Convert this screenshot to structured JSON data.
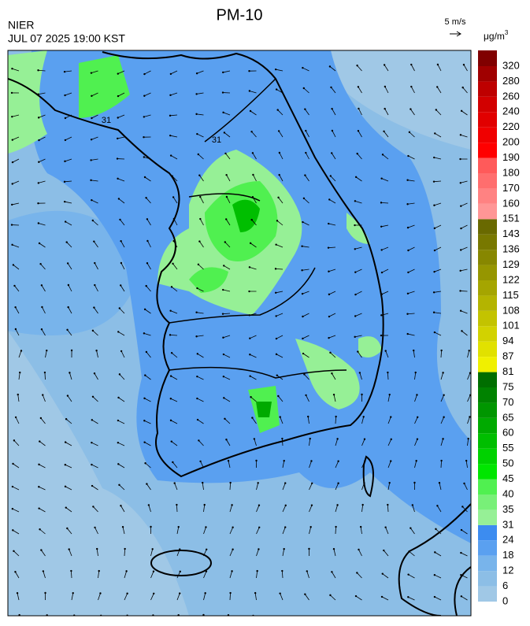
{
  "header": {
    "agency": "NIER",
    "title": "PM-10",
    "datetime": "JUL 07 2025 19:00 KST"
  },
  "wind_scale": {
    "label": "5 m/s"
  },
  "legend": {
    "unit": "μg/m",
    "unit_sup": "3",
    "labels": [
      "0",
      "6",
      "12",
      "18",
      "24",
      "31",
      "35",
      "40",
      "45",
      "50",
      "55",
      "60",
      "65",
      "70",
      "75",
      "81",
      "87",
      "94",
      "101",
      "108",
      "115",
      "122",
      "129",
      "136",
      "143",
      "151",
      "160",
      "170",
      "180",
      "190",
      "200",
      "220",
      "240",
      "260",
      "280",
      "320"
    ],
    "colors": [
      "#a0c8e6",
      "#8cbee6",
      "#78b4eb",
      "#5aa0f0",
      "#3c8cf0",
      "#96f096",
      "#78f078",
      "#50f050",
      "#00e600",
      "#00d200",
      "#00be00",
      "#00aa00",
      "#009600",
      "#008200",
      "#006e00",
      "#f0f000",
      "#e1e100",
      "#d2d200",
      "#c3c300",
      "#b4b400",
      "#a5a500",
      "#969600",
      "#878700",
      "#787800",
      "#696900",
      "#ff9696",
      "#ff8282",
      "#ff6e6e",
      "#ff5a5a",
      "#ff0000",
      "#f00000",
      "#e10000",
      "#d20000",
      "#be0000",
      "#a00000",
      "#800000"
    ]
  },
  "contour_labels": [
    "31",
    "31"
  ]
}
